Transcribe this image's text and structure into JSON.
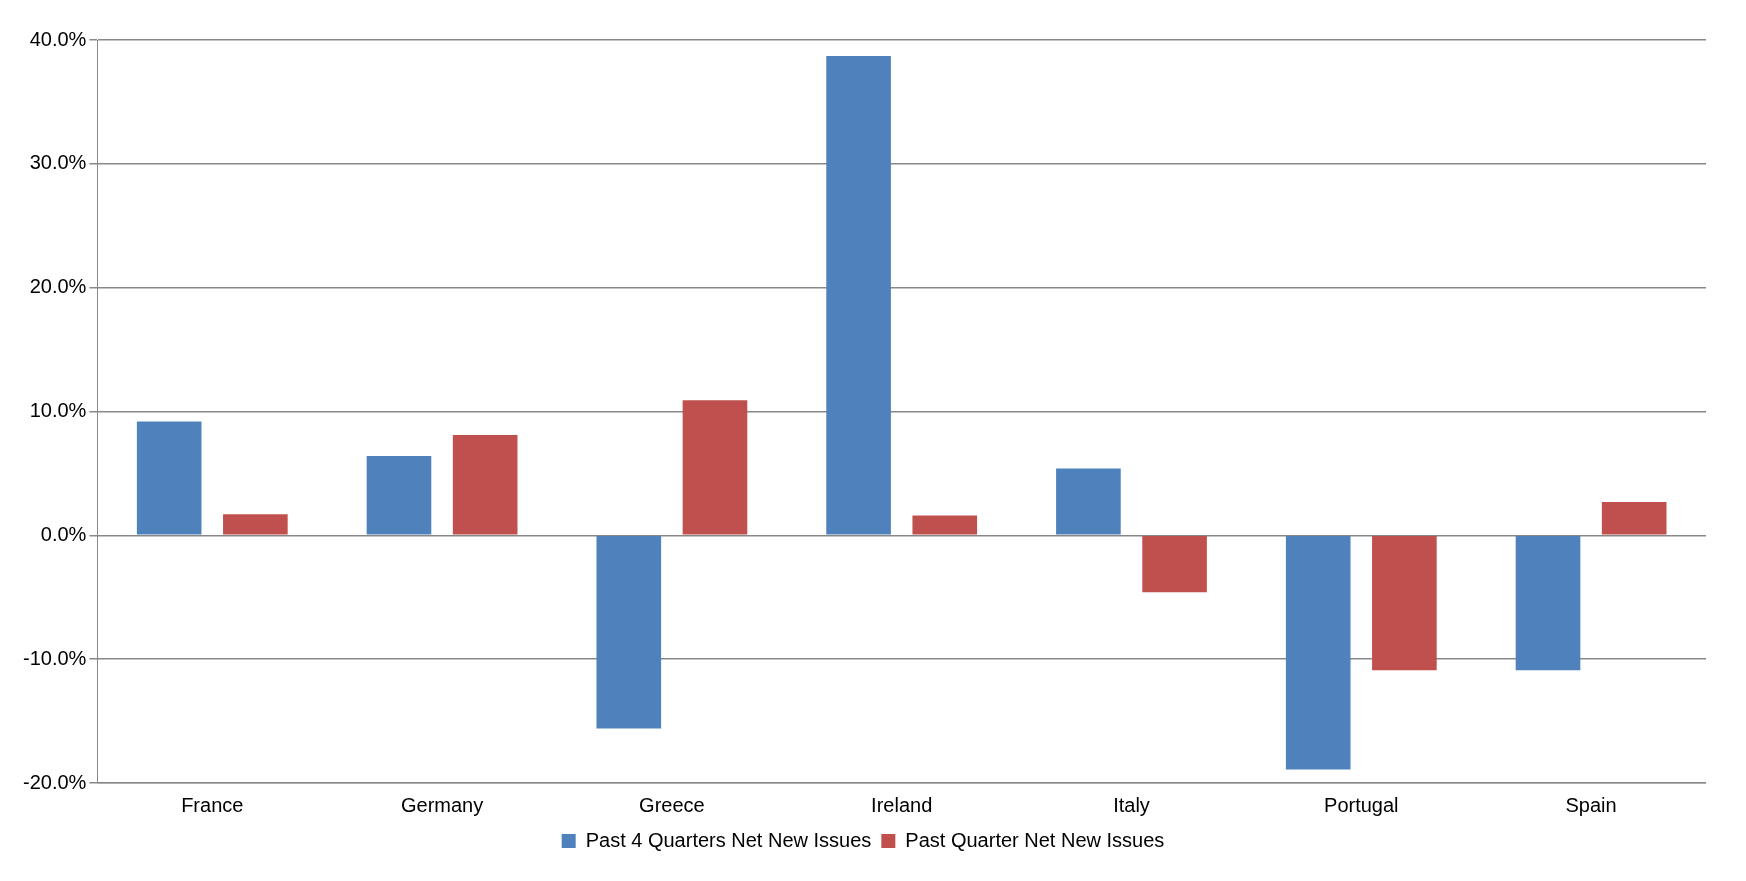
{
  "chart_data": {
    "type": "bar",
    "categories": [
      "France",
      "Germany",
      "Greece",
      "Ireland",
      "Italy",
      "Portugal",
      "Spain"
    ],
    "series": [
      {
        "name": "Past 4 Quarters Net New Issues",
        "color": "#4f81bd",
        "values": [
          9.2,
          6.4,
          -15.6,
          38.7,
          5.4,
          -18.9,
          -10.9
        ]
      },
      {
        "name": "Past Quarter Net New Issues",
        "color": "#c0504d",
        "values": [
          1.7,
          8.1,
          10.9,
          1.6,
          -4.6,
          -10.9,
          2.7
        ]
      }
    ],
    "ylim": [
      -20,
      40
    ],
    "yticks": [
      {
        "value": -20,
        "label": "-20.0%"
      },
      {
        "value": -10,
        "label": "-10.0%"
      },
      {
        "value": 0,
        "label": "0.0%"
      },
      {
        "value": 10,
        "label": "10.0%"
      },
      {
        "value": 20,
        "label": "20.0%"
      },
      {
        "value": 30,
        "label": "30.0%"
      },
      {
        "value": 40,
        "label": "40.0%"
      }
    ],
    "grid": "y",
    "legend": "bottom"
  }
}
